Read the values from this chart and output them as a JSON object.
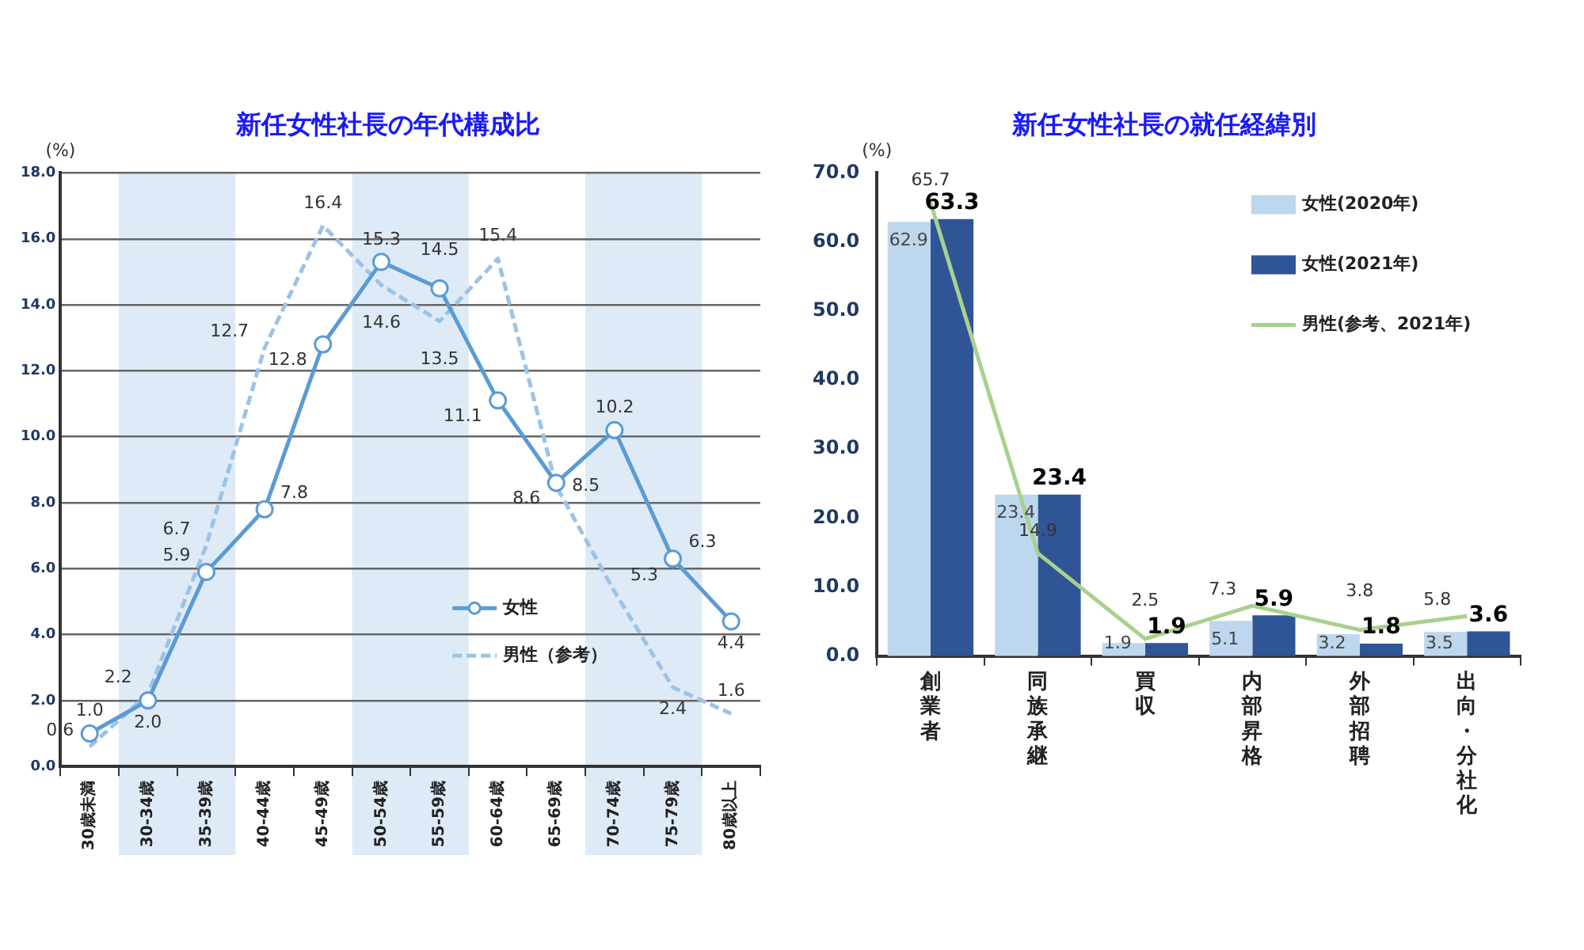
{
  "chart_data": [
    {
      "type": "line",
      "title": "新任女性社長の年代構成比",
      "ylabel": "(%)",
      "categories": [
        "30歳未満",
        "30-34歳",
        "35-39歳",
        "40-44歳",
        "45-49歳",
        "50-54歳",
        "55-59歳",
        "60-64歳",
        "65-69歳",
        "70-74歳",
        "75-79歳",
        "80歳以上"
      ],
      "series": [
        {
          "name": "女性",
          "color": "#5b9bd5",
          "marker": "circle",
          "line_style": "solid",
          "values": [
            1.0,
            2.0,
            5.9,
            7.8,
            12.8,
            15.3,
            14.5,
            11.1,
            8.6,
            10.2,
            6.3,
            4.4
          ],
          "value_labels": [
            "1.0",
            "2.0",
            "5.9",
            "7.8",
            "12.8",
            "15.3",
            "14.5",
            "11.1",
            "8.6",
            "10.2",
            "6.3",
            "4.4"
          ]
        },
        {
          "name": "男性（参考）",
          "color": "#9dc3e6",
          "marker": "none",
          "line_style": "dashed",
          "values": [
            0.6,
            2.2,
            6.7,
            12.7,
            16.4,
            14.6,
            13.5,
            15.4,
            8.5,
            5.3,
            2.4,
            1.6
          ],
          "value_labels": [
            "0.6",
            "2.2",
            "6.7",
            "12.7",
            "16.4",
            "14.6",
            "13.5",
            "15.4",
            "8.5",
            "5.3",
            "2.4",
            "1.6"
          ]
        }
      ],
      "bands": [
        {
          "axis": "x",
          "from": "30-34歳",
          "to": "35-39歳",
          "color": "#deebf7"
        },
        {
          "axis": "x",
          "from": "50-54歳",
          "to": "55-59歳",
          "color": "#deebf7"
        },
        {
          "axis": "x",
          "from": "70-74歳",
          "to": "75-79歳",
          "color": "#deebf7"
        }
      ],
      "ylim": [
        0,
        18
      ],
      "yticks": [
        {
          "value": 0,
          "label": "0.0"
        },
        {
          "value": 2,
          "label": "2.0"
        },
        {
          "value": 4,
          "label": "4.0"
        },
        {
          "value": 6,
          "label": "6.0"
        },
        {
          "value": 8,
          "label": "8.0"
        },
        {
          "value": 10,
          "label": "10.0"
        },
        {
          "value": 12,
          "label": "12.0"
        },
        {
          "value": 14,
          "label": "14.0"
        },
        {
          "value": 16,
          "label": "16.0"
        },
        {
          "value": 18,
          "label": "18.0"
        }
      ],
      "grid": "y",
      "legend": "bottom right"
    },
    {
      "type": "bar",
      "title": "新任女性社長の就任経緯別",
      "ylabel": "(%)",
      "categories": [
        "創業者",
        "同族承継",
        "買収",
        "内部昇格",
        "外部招聘",
        "出向・分社化"
      ],
      "series": [
        {
          "name": "女性(2020年)",
          "color": "#bdd7ee",
          "values": [
            62.9,
            23.4,
            1.9,
            5.1,
            3.2,
            3.5
          ],
          "value_labels": [
            "62.9",
            "23.4",
            "1.9",
            "5.1",
            "3.2",
            "3.5"
          ]
        },
        {
          "name": "女性(2021年)",
          "color": "#2f5597",
          "values": [
            63.3,
            23.4,
            1.9,
            5.9,
            1.8,
            3.6
          ],
          "value_labels": [
            "63.3",
            "23.4",
            "1.9",
            "5.9",
            "1.8",
            "3.6"
          ]
        },
        {
          "name": "男性(参考、2021年)",
          "type": "line",
          "color": "#a9d18e",
          "marker": "none",
          "line_style": "solid",
          "values": [
            65.7,
            14.9,
            2.5,
            7.3,
            3.8,
            5.8
          ],
          "value_labels": [
            "65.7",
            "14.9",
            "2.5",
            "7.3",
            "3.8",
            "5.8"
          ]
        }
      ],
      "ylim": [
        0,
        70
      ],
      "yticks": [
        {
          "value": 0,
          "label": "0.0"
        },
        {
          "value": 10,
          "label": "10.0"
        },
        {
          "value": 20,
          "label": "20.0"
        },
        {
          "value": 30,
          "label": "30.0"
        },
        {
          "value": 40,
          "label": "40.0"
        },
        {
          "value": 50,
          "label": "50.0"
        },
        {
          "value": 60,
          "label": "60.0"
        },
        {
          "value": 70,
          "label": "70.0"
        }
      ],
      "grid": false,
      "legend": "top right"
    }
  ]
}
